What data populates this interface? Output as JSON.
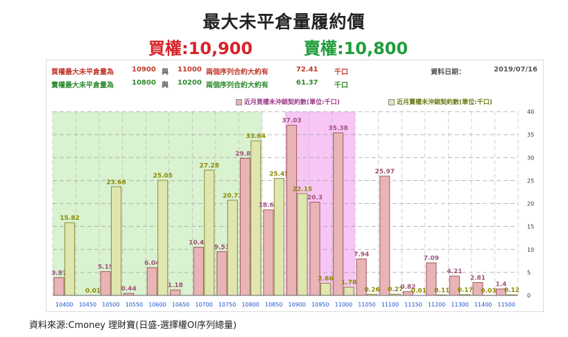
{
  "header": {
    "title": "最大未平倉量履約價",
    "call_text": "買權:10,900",
    "put_text": "賣權:10,800"
  },
  "info": {
    "call_line": {
      "label": "買權最大未平倉量為",
      "strike1": "10900",
      "conj": "與",
      "strike2": "11000",
      "desc": "兩個序列合約大約有",
      "value": "72.41",
      "unit": "千口"
    },
    "put_line": {
      "label": "賣權最大未平倉量為",
      "strike1": "10800",
      "conj": "與",
      "strike2": "10200",
      "desc": "兩個序列合約大約有",
      "value": "61.37",
      "unit": "千口"
    },
    "date_label": "資料日期：",
    "date_value": "2019/07/16"
  },
  "legend": {
    "call": "近月買權未沖銷契約數(單位:千口)",
    "put": "近月賣權未沖銷契約數(單位:千口)"
  },
  "source": "資料來源:Cmoney 理財寶(日盛-選擇權OI序列總量)",
  "colors": {
    "call_fill": "#e8b4b6",
    "call_stroke": "#a0585c",
    "call_label": "#a0527a",
    "put_fill": "#dfe6b0",
    "put_stroke": "#8a8a3a",
    "put_label": "#8a8a00",
    "green_zone": "#d9f2d0",
    "pink_zone": "#f7c6f5",
    "xlabel": "#1a52c9"
  },
  "chart_data": {
    "type": "bar",
    "categories": [
      "10400",
      "10450",
      "10500",
      "10550",
      "10600",
      "10650",
      "10700",
      "10750",
      "10800",
      "10850",
      "10900",
      "10950",
      "11000",
      "11050",
      "11100",
      "11150",
      "11200",
      "11300",
      "11400",
      "11500"
    ],
    "series": [
      {
        "name": "近月買權未沖銷契約數(單位:千口)",
        "values": [
          3.87,
          null,
          5.19,
          0.44,
          6.04,
          1.18,
          10.47,
          9.53,
          29.84,
          18.62,
          37.03,
          20.3,
          35.38,
          7.94,
          25.97,
          0.82,
          7.09,
          4.21,
          2.81,
          1.4
        ]
      },
      {
        "name": "近月賣權未沖銷契約數(單位:千口)",
        "values": [
          15.82,
          0.01,
          23.66,
          null,
          25.05,
          null,
          27.28,
          20.71,
          33.64,
          25.45,
          22.15,
          2.66,
          1.78,
          0.26,
          0.27,
          0.01,
          0.11,
          0.17,
          0.03,
          0.12
        ]
      }
    ],
    "ylim": [
      0,
      40
    ],
    "yticks": [
      0,
      5,
      10,
      15,
      20,
      25,
      30,
      35,
      40
    ],
    "grid": true,
    "legend_position": "top-right",
    "shaded_ranges": [
      {
        "color": "green",
        "from": "10400",
        "to": "10800"
      },
      {
        "color": "pink",
        "from": "10900",
        "to": "11000"
      }
    ]
  }
}
